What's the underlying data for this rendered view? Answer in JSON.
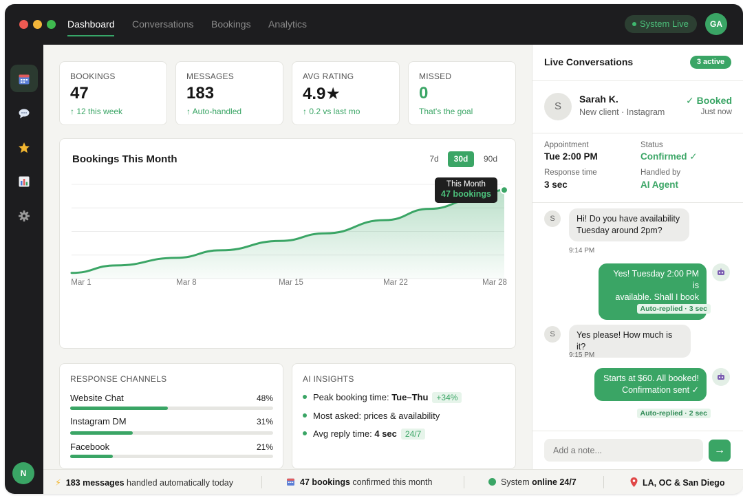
{
  "topbar": {
    "tabs": [
      {
        "label": "Dashboard",
        "active": true
      },
      {
        "label": "Conversations",
        "active": false
      },
      {
        "label": "Bookings",
        "active": false
      },
      {
        "label": "Analytics",
        "active": false
      }
    ],
    "status_pill": "System Live",
    "avatar_initials": "GA"
  },
  "sidebar": {
    "icons": [
      "calendar-icon",
      "chat-icon",
      "star-icon",
      "bar-chart-icon",
      "gear-icon"
    ],
    "avatar_initials": "N"
  },
  "stats": [
    {
      "label": "BOOKINGS",
      "value": "47",
      "sub": "↑ 12 this week"
    },
    {
      "label": "MESSAGES",
      "value": "183",
      "sub": "↑ Auto-handled"
    },
    {
      "label": "AVG RATING",
      "value": "4.9★",
      "sub": "↑ 0.2 vs last mo"
    },
    {
      "label": "MISSED",
      "value": "0",
      "sub": "That's the goal"
    }
  ],
  "bookings_chart": {
    "title": "Bookings This Month",
    "ranges": [
      {
        "label": "7d",
        "active": false
      },
      {
        "label": "30d",
        "active": true
      },
      {
        "label": "90d",
        "active": false
      }
    ],
    "tooltip": {
      "title": "This Month",
      "value": "47 bookings"
    }
  },
  "chart_data": {
    "type": "area",
    "title": "Bookings This Month",
    "x_ticks": [
      "Mar 1",
      "Mar 8",
      "Mar 15",
      "Mar 22",
      "Mar 28"
    ],
    "series": [
      {
        "values": [
          {
            "day": 1,
            "y": 3
          },
          {
            "day": 4,
            "y": 7
          },
          {
            "day": 8,
            "y": 11
          },
          {
            "day": 11,
            "y": 15
          },
          {
            "day": 15,
            "y": 20
          },
          {
            "day": 18,
            "y": 24
          },
          {
            "day": 22,
            "y": 31
          },
          {
            "day": 25,
            "y": 37
          },
          {
            "day": 28,
            "y": 42
          },
          {
            "day": 30,
            "y": 47
          }
        ]
      }
    ],
    "xlim": [
      1,
      30
    ],
    "ylim": [
      0,
      50
    ],
    "grid": true,
    "color": "#3aa565"
  },
  "response_channels": {
    "label": "RESPONSE CHANNELS",
    "items": [
      {
        "name": "Website Chat",
        "pct_label": "48%",
        "pct": 48
      },
      {
        "name": "Instagram DM",
        "pct_label": "31%",
        "pct": 31
      },
      {
        "name": "Facebook",
        "pct_label": "21%",
        "pct": 21
      }
    ]
  },
  "ai_insights": {
    "label": "AI INSIGHTS",
    "items": [
      {
        "text": "Peak booking time: ",
        "bold": "Tue–Thu",
        "badge": "+34%"
      },
      {
        "text": "Most asked: prices & availability",
        "bold": "",
        "badge": ""
      },
      {
        "text": "Avg reply time: ",
        "bold": "4 sec",
        "badge": "24/7"
      }
    ]
  },
  "live_conversations": {
    "title": "Live Conversations",
    "badge": "3 active",
    "contact": {
      "initial": "S",
      "name": "Sarah K.",
      "meta": "New client · Instagram",
      "status": "✓ Booked",
      "time": "Just now"
    },
    "details": [
      {
        "label": "Appointment",
        "value": "Tue 2:00 PM",
        "green": false
      },
      {
        "label": "Status",
        "value": "Confirmed ✓",
        "green": true
      },
      {
        "label": "Response time",
        "value": "3 sec",
        "green": false
      },
      {
        "label": "Handled by",
        "value": "AI Agent",
        "green": true
      }
    ],
    "messages": [
      {
        "from": "client",
        "avatar": "S",
        "text1": "Hi! Do you have availability",
        "text2": "Tuesday around 2pm?",
        "meta": "9:14 PM"
      },
      {
        "from": "bot",
        "text1": "Yes! Tuesday 2:00 PM is",
        "text2": "available. Shall I book it?",
        "meta": "Auto-replied · 3 sec"
      },
      {
        "from": "client",
        "avatar": "S",
        "text1": "Yes please! How much is it?",
        "text2": "",
        "meta": "9:15 PM"
      },
      {
        "from": "bot",
        "text1": "Starts at $60. All booked!",
        "text2": "Confirmation sent ✓",
        "meta": "Auto-replied · 2 sec"
      }
    ],
    "note_placeholder": "Add a note...",
    "send_icon": "arrow-right-icon"
  },
  "footer": {
    "items": [
      {
        "icon": "bolt-icon",
        "bold": "183 messages",
        "rest": " handled automatically today"
      },
      {
        "icon": "calendar-icon",
        "bold": "47 bookings",
        "rest": " confirmed this month"
      },
      {
        "icon": "status-dot-icon",
        "pre": "System ",
        "bold": "online 24/7"
      },
      {
        "icon": "pin-icon",
        "bold": "LA, OC & San Diego"
      }
    ]
  }
}
